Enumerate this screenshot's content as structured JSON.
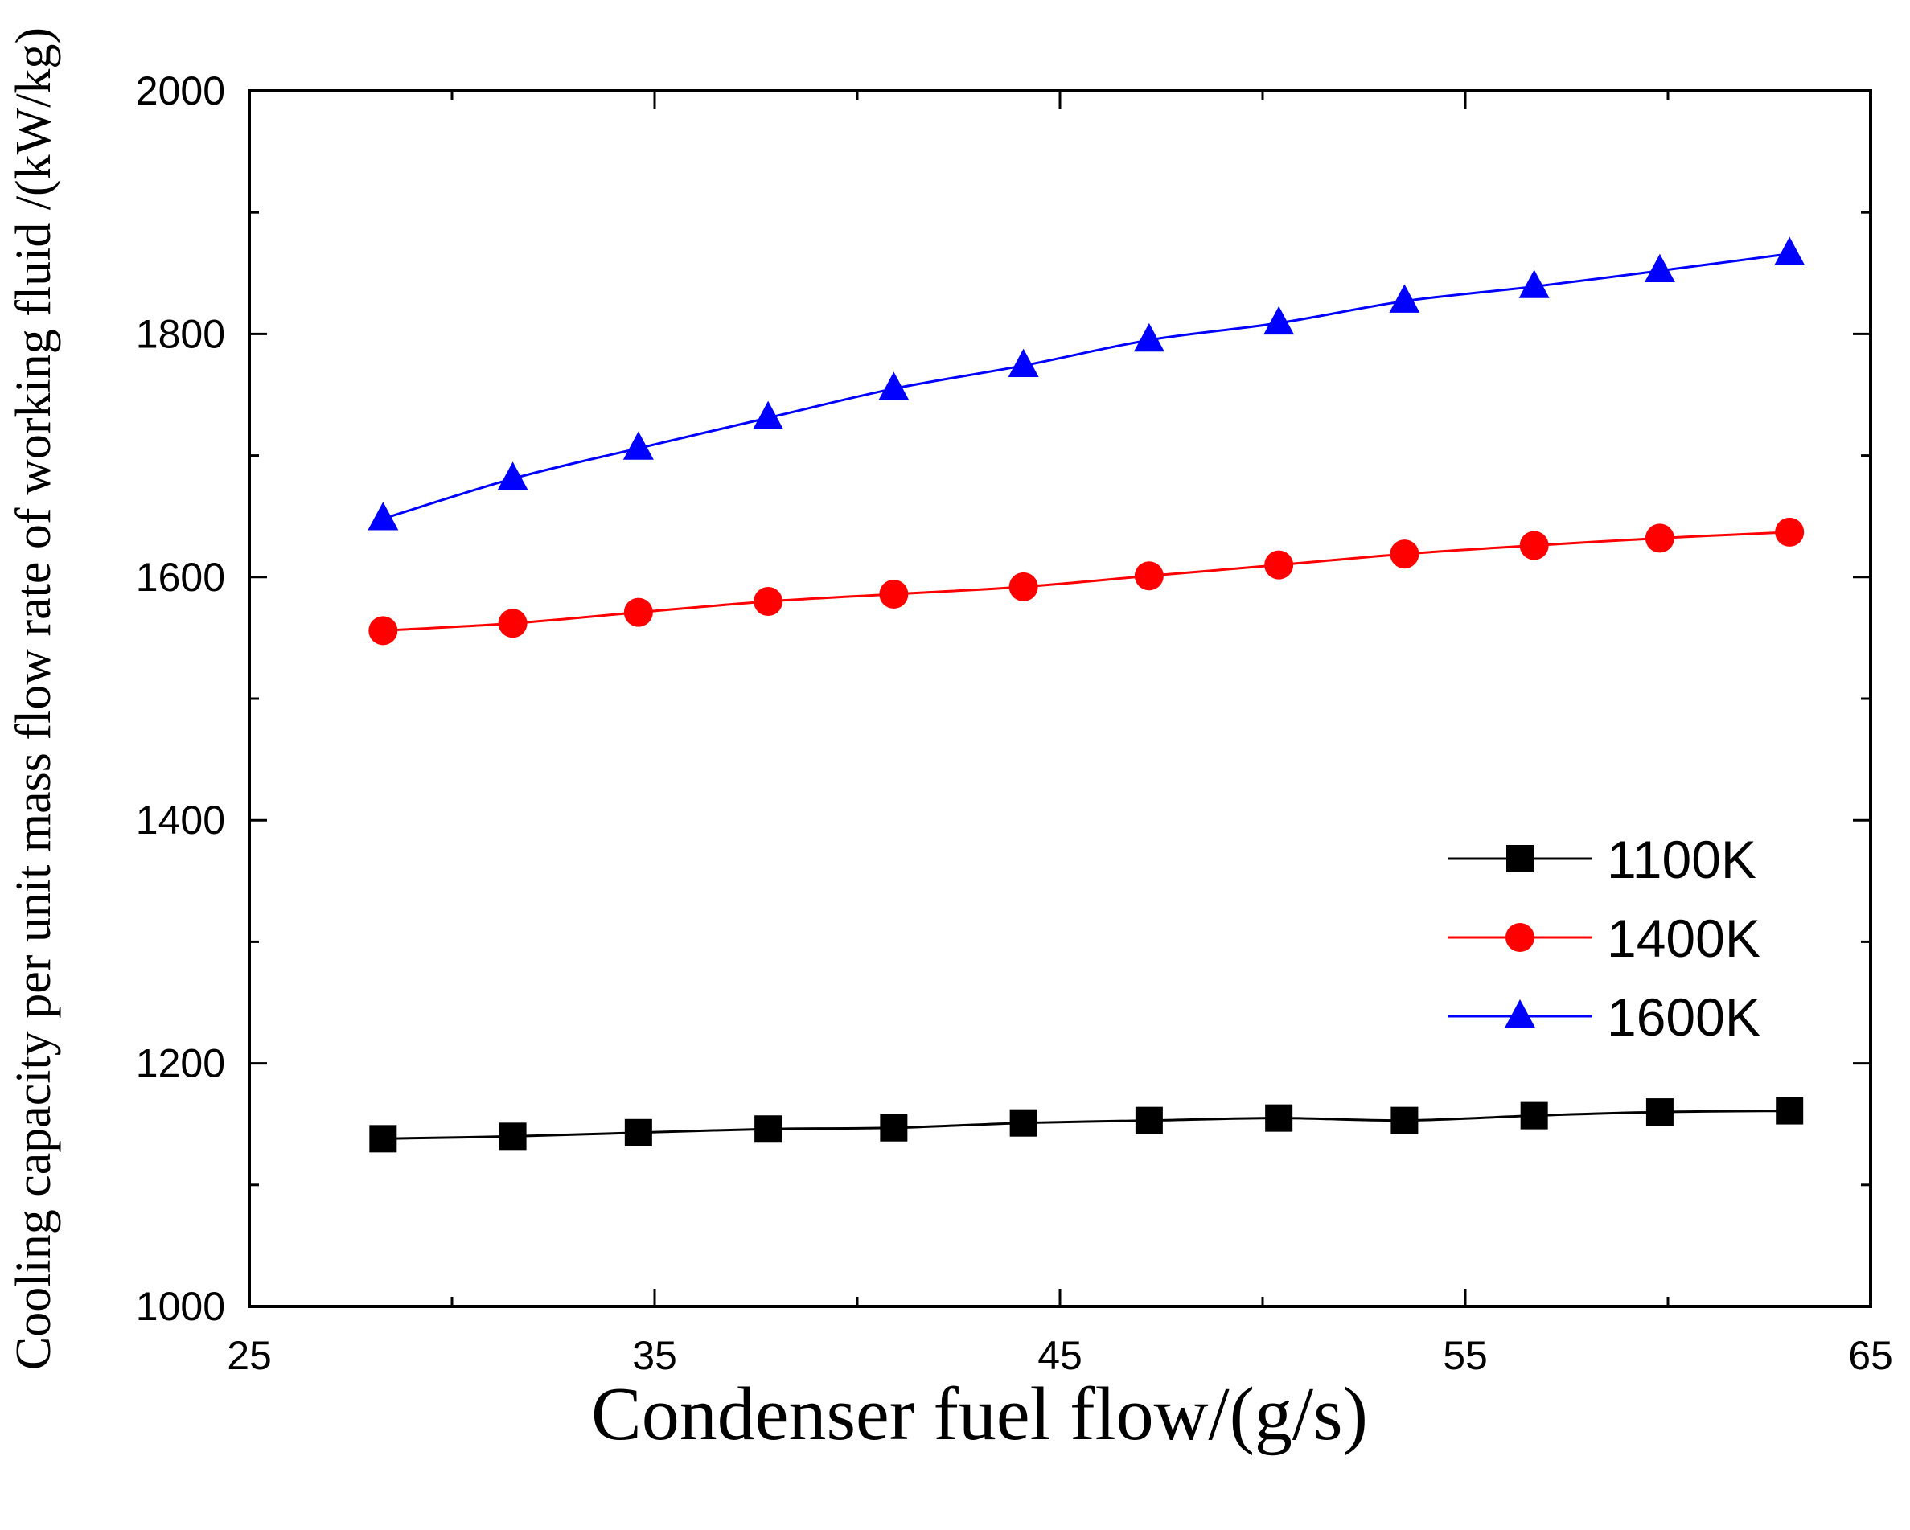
{
  "chart_data": {
    "type": "line",
    "title": "",
    "xlabel": "Condenser fuel flow/(g/s)",
    "ylabel": "Cooling capacity per unit mass flow rate of working fluid /(kW/kg)",
    "xlim": [
      25,
      65
    ],
    "ylim": [
      1000,
      2000
    ],
    "x_major_ticks": [
      25,
      35,
      45,
      55,
      65
    ],
    "x_minor_ticks": [
      30,
      40,
      50,
      60
    ],
    "y_major_ticks": [
      1000,
      1200,
      1400,
      1600,
      1800,
      2000
    ],
    "y_minor_ticks": [
      1100,
      1300,
      1500,
      1700,
      1900
    ],
    "grid": false,
    "legend_position": "right-middle",
    "x": [
      28.3,
      31.5,
      34.6,
      37.8,
      40.9,
      44.1,
      47.2,
      50.4,
      53.5,
      56.7,
      59.8,
      63.0
    ],
    "series": [
      {
        "name": "1100K",
        "color": "#000000",
        "marker": "square",
        "values": [
          1138,
          1140,
          1143,
          1146,
          1147,
          1151,
          1153,
          1155,
          1153,
          1157,
          1160,
          1161
        ]
      },
      {
        "name": "1400K",
        "color": "#ff0000",
        "marker": "circle",
        "values": [
          1556,
          1562,
          1571,
          1580,
          1586,
          1592,
          1601,
          1610,
          1619,
          1626,
          1632,
          1637
        ]
      },
      {
        "name": "1600K",
        "color": "#0000ff",
        "marker": "triangle",
        "values": [
          1648,
          1681,
          1706,
          1731,
          1755,
          1774,
          1795,
          1809,
          1827,
          1839,
          1852,
          1866
        ]
      }
    ]
  }
}
